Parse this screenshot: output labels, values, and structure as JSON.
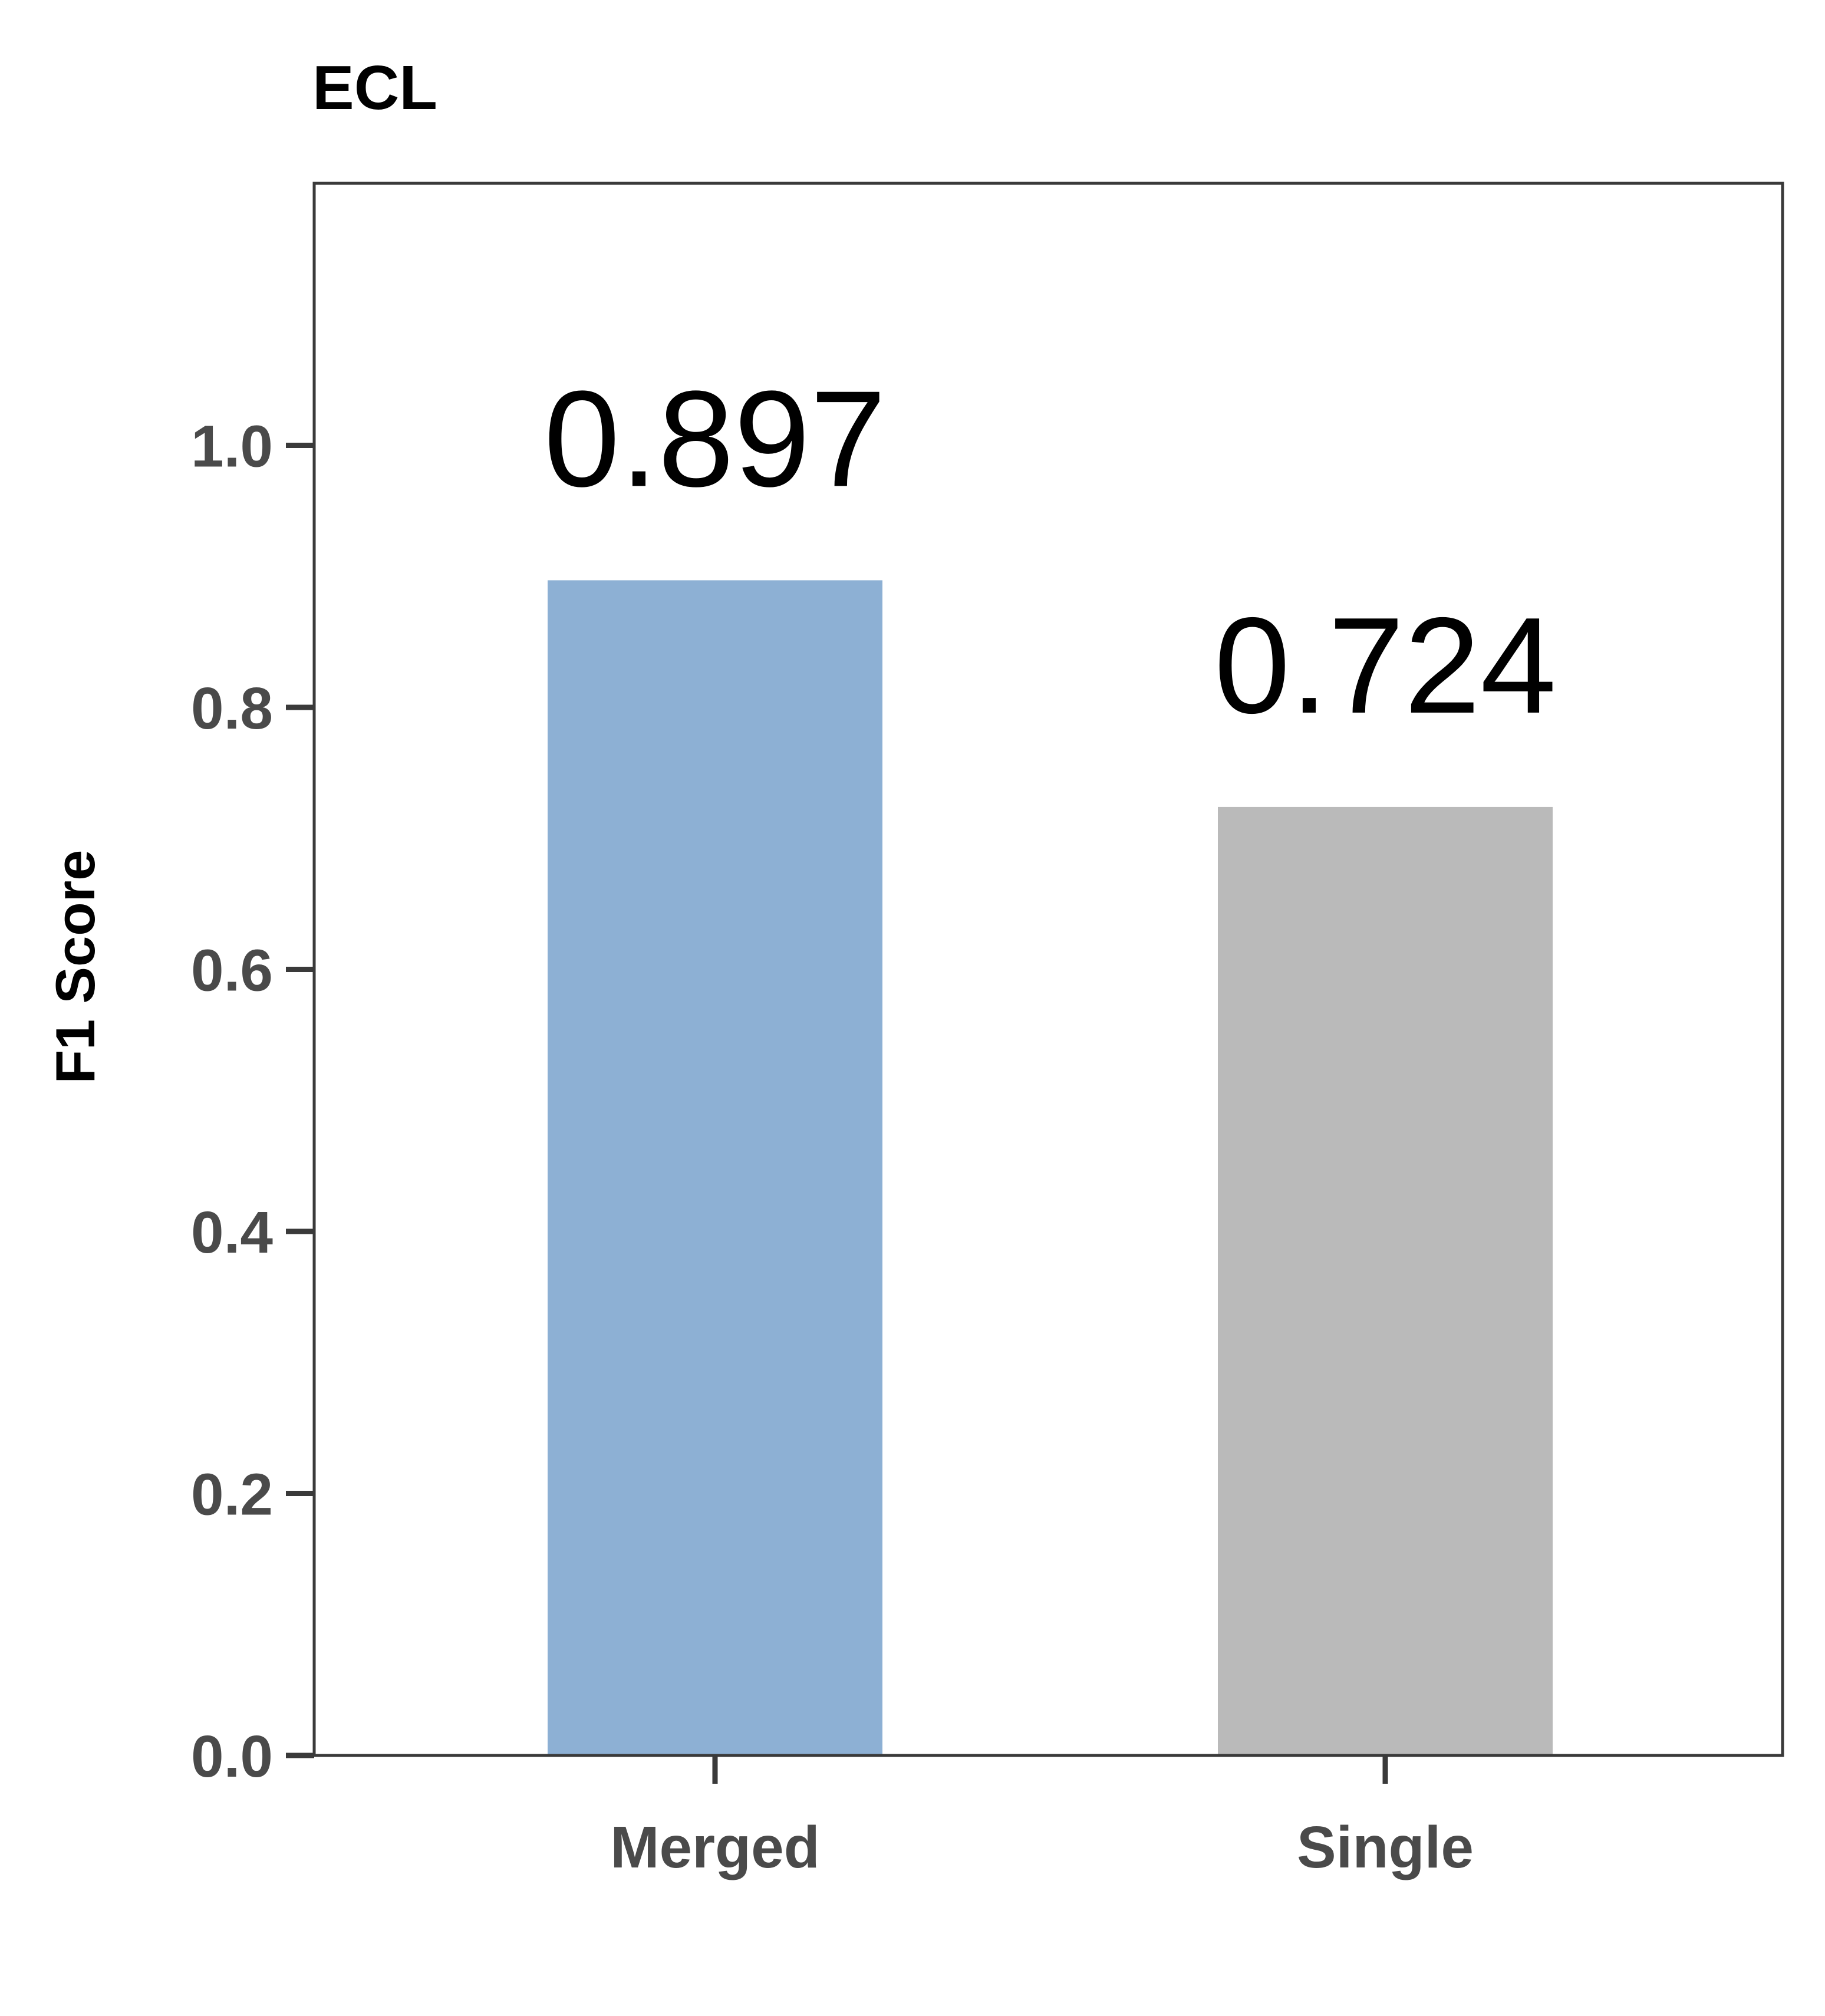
{
  "chart_data": {
    "type": "bar",
    "title": "ECL",
    "xlabel": "",
    "ylabel": "F1 Score",
    "categories": [
      "Merged",
      "Single"
    ],
    "values": [
      0.897,
      0.724
    ],
    "value_labels": [
      "0.897",
      "0.724"
    ],
    "colors": [
      "#8db0d4",
      "#bababa"
    ],
    "ylim": [
      0,
      1.2
    ],
    "yticks": [
      0.0,
      0.2,
      0.4,
      0.6,
      0.8,
      1.0
    ],
    "ytick_labels": [
      "0.0",
      "0.2",
      "0.4",
      "0.6",
      "0.8",
      "1.0"
    ],
    "grid": false,
    "legend": "none"
  }
}
